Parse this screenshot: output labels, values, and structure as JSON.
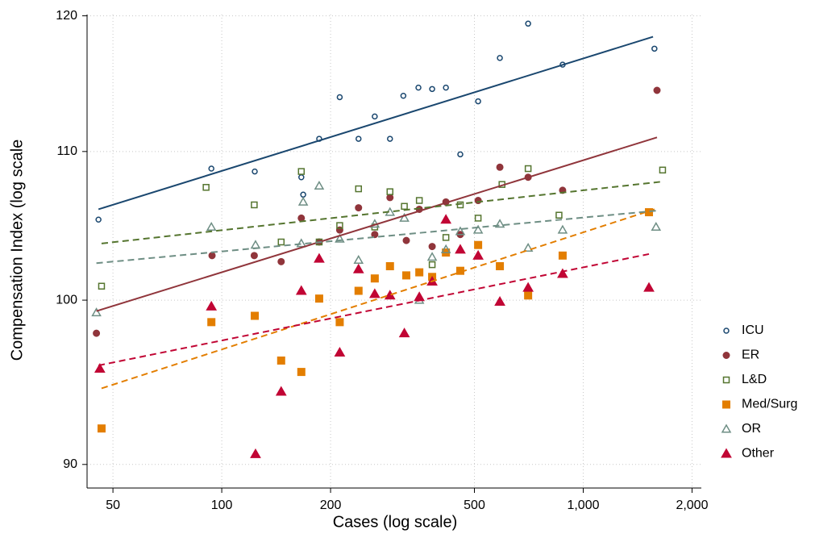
{
  "chart_data": {
    "type": "scatter",
    "x_label": "Cases (log scale)",
    "y_label": "Compensation Index (log scale",
    "xscale": "log",
    "yscale": "log",
    "xlim": [
      42.4,
      2122
    ],
    "ylim": [
      88.65,
      120.1
    ],
    "xticks": [
      50,
      100,
      200,
      500,
      {
        "value": 1000,
        "label": "1,000"
      },
      {
        "value": 2000,
        "label": "2,000"
      }
    ],
    "yticks": [
      90,
      100,
      110,
      120
    ],
    "grid": true,
    "legend": "right",
    "series": [
      {
        "name": "ICU",
        "color": "#1a476f",
        "marker": "circle",
        "filled": false,
        "fit_style": "solid",
        "x": [
          45.6,
          93.6,
          123.4,
          168,
          166,
          186,
          212,
          239,
          265,
          292,
          318,
          350,
          382,
          417,
          457,
          512,
          588,
          704,
          877,
          1574
        ],
        "values": [
          105.3,
          108.8,
          108.6,
          107.0,
          108.2,
          110.9,
          113.9,
          110.9,
          112.5,
          110.9,
          114.0,
          114.6,
          114.5,
          114.6,
          109.8,
          113.6,
          116.8,
          119.4,
          116.3,
          117.5
        ],
        "fit": {
          "x": [
            45.6,
            1560
          ],
          "values": [
            106.0,
            118.4
          ]
        }
      },
      {
        "name": "ER",
        "color": "#90353b",
        "marker": "circle",
        "filled": true,
        "fit_style": "solid",
        "x": [
          45,
          94,
          123,
          146,
          166,
          186,
          212,
          239,
          265,
          292,
          324,
          352,
          382,
          417,
          457,
          512,
          588,
          704,
          877,
          1600
        ],
        "values": [
          97.9,
          102.9,
          102.9,
          102.5,
          105.4,
          103.8,
          104.6,
          106.1,
          104.3,
          106.8,
          103.9,
          106.0,
          103.5,
          106.5,
          104.3,
          106.6,
          108.9,
          108.2,
          107.3,
          114.4
        ],
        "fit": {
          "x": [
            45,
            1600
          ],
          "values": [
            99.3,
            111.0
          ]
        }
      },
      {
        "name": "L&D",
        "color": "#55752f",
        "marker": "square",
        "filled": false,
        "fit_style": "dashed",
        "x": [
          46.5,
          90.5,
          123,
          146,
          166,
          186,
          212,
          239,
          265,
          292,
          320,
          352,
          382,
          417,
          457,
          512,
          596,
          704,
          857,
          1658
        ],
        "values": [
          100.9,
          107.5,
          106.3,
          103.8,
          108.6,
          103.8,
          104.9,
          107.4,
          104.8,
          107.2,
          106.2,
          106.6,
          102.3,
          104.1,
          106.3,
          105.4,
          107.7,
          108.8,
          105.6,
          108.7
        ],
        "fit": {
          "x": [
            46.5,
            1658
          ],
          "values": [
            103.7,
            107.9
          ]
        }
      },
      {
        "name": "Med/Surg",
        "color": "#e37e00",
        "marker": "square",
        "filled": true,
        "fit_style": "dashed",
        "x": [
          46.5,
          93.6,
          123.4,
          146,
          166,
          186,
          212,
          239,
          265,
          292,
          324,
          352,
          382,
          417,
          457,
          512,
          588,
          704,
          877,
          1520
        ],
        "values": [
          92.1,
          98.6,
          99.0,
          96.2,
          95.5,
          100.1,
          98.6,
          100.6,
          101.4,
          102.2,
          101.6,
          101.8,
          101.5,
          103.1,
          101.9,
          103.6,
          102.2,
          100.3,
          102.9,
          105.8
        ],
        "fit": {
          "x": [
            46.5,
            1574
          ],
          "values": [
            94.5,
            106.0
          ]
        }
      },
      {
        "name": "OR",
        "color": "#6e8e84",
        "marker": "triangle",
        "filled": false,
        "fit_style": "dashed",
        "x": [
          45,
          93.6,
          124,
          168,
          166,
          186,
          212,
          239,
          265,
          292,
          320,
          352,
          382,
          417,
          457,
          512,
          588,
          704,
          877,
          1590
        ],
        "values": [
          99.2,
          104.8,
          103.6,
          106.5,
          103.7,
          107.6,
          104.0,
          102.6,
          105.0,
          105.8,
          105.4,
          100.0,
          102.8,
          103.3,
          104.5,
          104.6,
          105.0,
          103.4,
          104.6,
          104.8
        ],
        "fit": {
          "x": [
            45,
            1590
          ],
          "values": [
            102.4,
            105.9
          ]
        }
      },
      {
        "name": "Other",
        "color": "#c10534",
        "marker": "triangle",
        "filled": true,
        "fit_style": "dashed",
        "x": [
          46,
          93.6,
          124,
          146,
          166,
          186,
          212,
          239,
          265,
          292,
          320,
          352,
          382,
          417,
          457,
          512,
          588,
          704,
          877,
          1520
        ],
        "values": [
          95.7,
          99.6,
          90.6,
          94.3,
          100.6,
          102.7,
          96.7,
          102.0,
          100.4,
          100.3,
          97.9,
          100.2,
          101.2,
          105.3,
          103.3,
          102.9,
          99.9,
          100.8,
          101.7,
          100.8
        ],
        "fit": {
          "x": [
            45.6,
            1520
          ],
          "values": [
            95.9,
            103.0
          ]
        }
      }
    ]
  }
}
